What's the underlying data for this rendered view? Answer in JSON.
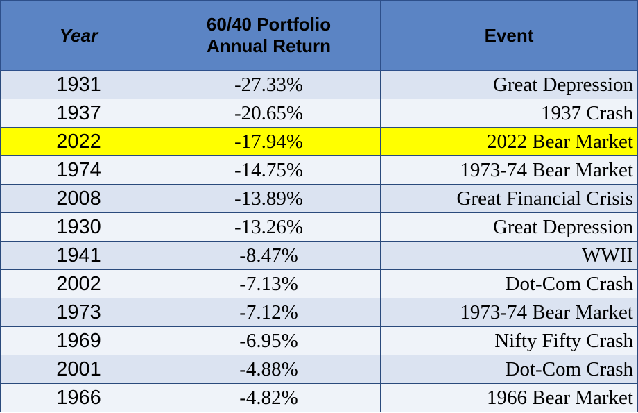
{
  "chart_data": {
    "type": "table",
    "columns": [
      "Year",
      "60/40 Portfolio Annual Return",
      "Event"
    ],
    "header": {
      "year": "Year",
      "return_line1": "60/40 Portfolio",
      "return_line2": "Annual Return",
      "event": "Event"
    },
    "rows": [
      {
        "year": "1931",
        "return": "-27.33%",
        "event": "Great Depression",
        "highlight": false
      },
      {
        "year": "1937",
        "return": "-20.65%",
        "event": "1937 Crash",
        "highlight": false
      },
      {
        "year": "2022",
        "return": "-17.94%",
        "event": "2022 Bear Market",
        "highlight": true
      },
      {
        "year": "1974",
        "return": "-14.75%",
        "event": "1973-74 Bear Market",
        "highlight": false
      },
      {
        "year": "2008",
        "return": "-13.89%",
        "event": "Great Financial Crisis",
        "highlight": false
      },
      {
        "year": "1930",
        "return": "-13.26%",
        "event": "Great Depression",
        "highlight": false
      },
      {
        "year": "1941",
        "return": "-8.47%",
        "event": "WWII",
        "highlight": false
      },
      {
        "year": "2002",
        "return": "-7.13%",
        "event": "Dot-Com Crash",
        "highlight": false
      },
      {
        "year": "1973",
        "return": "-7.12%",
        "event": "1973-74 Bear Market",
        "highlight": false
      },
      {
        "year": "1969",
        "return": "-6.95%",
        "event": "Nifty Fifty Crash",
        "highlight": false
      },
      {
        "year": "2001",
        "return": "-4.88%",
        "event": "Dot-Com Crash",
        "highlight": false
      },
      {
        "year": "1966",
        "return": "-4.82%",
        "event": "1966 Bear Market",
        "highlight": false
      }
    ],
    "colors": {
      "header_fill": "#5b84c4",
      "row_band_a": "#dbe3f1",
      "row_band_b": "#eff3f9",
      "highlight_fill": "#ffff00"
    }
  }
}
